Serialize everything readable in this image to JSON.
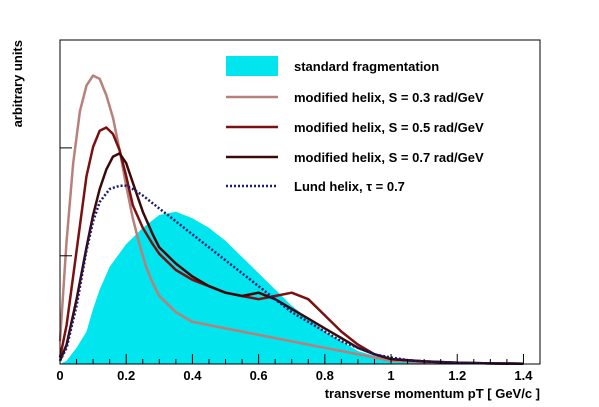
{
  "chart_data": {
    "type": "line",
    "xlabel": "transverse momentum pT [ GeV/c ]",
    "ylabel": "arbitrary units",
    "xlim": [
      0,
      1.45
    ],
    "ylim": [
      0,
      1.0
    ],
    "x_tick_labels": [
      "0",
      "0.2",
      "0.4",
      "0.6",
      "0.8",
      "1",
      "1.2",
      "1.4"
    ],
    "y_major_ticks": [
      0.334,
      0.667
    ],
    "legend_position": "top-right",
    "colors": {
      "standard": "#00e5ee",
      "helix_03": "#b8807a",
      "helix_05": "#7a1010",
      "helix_07": "#3a0a0a",
      "lund": "#1a1a6e"
    },
    "series": [
      {
        "name": "standard fragmentation",
        "style": "filled",
        "x": [
          0.0,
          0.02,
          0.05,
          0.08,
          0.1,
          0.12,
          0.15,
          0.2,
          0.25,
          0.3,
          0.35,
          0.4,
          0.45,
          0.5,
          0.55,
          0.6,
          0.65,
          0.7,
          0.75,
          0.8,
          0.85,
          0.9,
          0.95,
          1.0,
          1.05,
          1.1,
          1.15,
          1.2,
          1.25,
          1.3,
          1.35,
          1.4
        ],
        "values": [
          0.0,
          0.01,
          0.05,
          0.1,
          0.17,
          0.23,
          0.3,
          0.37,
          0.42,
          0.46,
          0.47,
          0.45,
          0.42,
          0.38,
          0.33,
          0.28,
          0.23,
          0.18,
          0.14,
          0.1,
          0.07,
          0.04,
          0.025,
          0.015,
          0.01,
          0.006,
          0.004,
          0.003,
          0.002,
          0.001,
          0.001,
          0.0
        ]
      },
      {
        "name": "modified helix, S =  0.3 rad/GeV",
        "style": "solid",
        "x": [
          0.0,
          0.02,
          0.04,
          0.06,
          0.08,
          0.1,
          0.12,
          0.14,
          0.16,
          0.18,
          0.2,
          0.22,
          0.24,
          0.26,
          0.28,
          0.3,
          0.35,
          0.4,
          0.45,
          0.5,
          0.55,
          0.6,
          0.65,
          0.7,
          0.75,
          0.8,
          0.85,
          0.9,
          0.95,
          1.0,
          1.1,
          1.2,
          1.3,
          1.4
        ],
        "values": [
          0.07,
          0.38,
          0.62,
          0.78,
          0.86,
          0.89,
          0.88,
          0.83,
          0.76,
          0.66,
          0.55,
          0.45,
          0.37,
          0.3,
          0.25,
          0.21,
          0.16,
          0.13,
          0.12,
          0.11,
          0.1,
          0.09,
          0.08,
          0.07,
          0.06,
          0.05,
          0.04,
          0.03,
          0.02,
          0.01,
          0.005,
          0.003,
          0.002,
          0.001
        ]
      },
      {
        "name": "modified helix, S = 0.5 rad/GeV",
        "style": "solid",
        "x": [
          0.0,
          0.02,
          0.05,
          0.08,
          0.1,
          0.12,
          0.14,
          0.16,
          0.18,
          0.2,
          0.22,
          0.25,
          0.28,
          0.3,
          0.35,
          0.4,
          0.45,
          0.5,
          0.55,
          0.6,
          0.65,
          0.7,
          0.75,
          0.8,
          0.85,
          0.9,
          0.95,
          1.0,
          1.1,
          1.2,
          1.3,
          1.4
        ],
        "values": [
          0.02,
          0.12,
          0.35,
          0.58,
          0.67,
          0.72,
          0.73,
          0.71,
          0.66,
          0.58,
          0.49,
          0.42,
          0.37,
          0.34,
          0.29,
          0.26,
          0.24,
          0.22,
          0.21,
          0.2,
          0.21,
          0.22,
          0.2,
          0.15,
          0.1,
          0.06,
          0.03,
          0.015,
          0.008,
          0.004,
          0.002,
          0.001
        ]
      },
      {
        "name": "modified helix, S = 0.7 rad/GeV",
        "style": "solid",
        "x": [
          0.0,
          0.02,
          0.05,
          0.08,
          0.1,
          0.12,
          0.14,
          0.16,
          0.18,
          0.2,
          0.22,
          0.25,
          0.28,
          0.3,
          0.35,
          0.4,
          0.45,
          0.5,
          0.55,
          0.6,
          0.65,
          0.7,
          0.75,
          0.8,
          0.85,
          0.9,
          0.95,
          1.0,
          1.1,
          1.2,
          1.3,
          1.4
        ],
        "values": [
          0.01,
          0.06,
          0.2,
          0.36,
          0.46,
          0.54,
          0.6,
          0.64,
          0.65,
          0.62,
          0.56,
          0.47,
          0.4,
          0.36,
          0.31,
          0.27,
          0.24,
          0.22,
          0.21,
          0.22,
          0.2,
          0.17,
          0.14,
          0.11,
          0.08,
          0.05,
          0.03,
          0.015,
          0.008,
          0.004,
          0.002,
          0.001
        ]
      },
      {
        "name": "Lund helix, τ = 0.7",
        "style": "dotted",
        "x": [
          0.0,
          0.02,
          0.05,
          0.08,
          0.1,
          0.12,
          0.15,
          0.18,
          0.2,
          0.22,
          0.25,
          0.3,
          0.35,
          0.4,
          0.45,
          0.5,
          0.55,
          0.6,
          0.65,
          0.7,
          0.75,
          0.8,
          0.85,
          0.9,
          0.95,
          1.0,
          1.05,
          1.1,
          1.2,
          1.3,
          1.4
        ],
        "values": [
          0.01,
          0.05,
          0.18,
          0.35,
          0.44,
          0.5,
          0.54,
          0.55,
          0.55,
          0.54,
          0.52,
          0.48,
          0.44,
          0.4,
          0.36,
          0.32,
          0.28,
          0.24,
          0.2,
          0.16,
          0.13,
          0.1,
          0.07,
          0.05,
          0.03,
          0.02,
          0.012,
          0.008,
          0.004,
          0.002,
          0.001
        ]
      }
    ]
  }
}
